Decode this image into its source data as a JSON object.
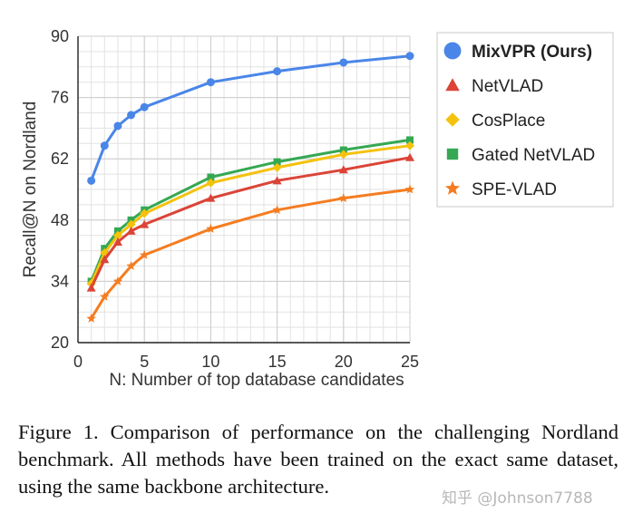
{
  "chart_data": {
    "type": "line",
    "title": "",
    "xlabel": "N: Number of top database candidates",
    "ylabel": "Recall@N on Nordland",
    "x": [
      1,
      2,
      3,
      4,
      5,
      10,
      15,
      20,
      25
    ],
    "xticks": [
      0,
      5,
      10,
      15,
      20,
      25
    ],
    "yticks": [
      20,
      34,
      48,
      62,
      76,
      90
    ],
    "xlim": [
      0,
      25
    ],
    "ylim": [
      20,
      90
    ],
    "grid": true,
    "legend_position": "right",
    "series": [
      {
        "name": "MixVPR (Ours)",
        "marker": "circle",
        "color": "#4a86e8",
        "bold": true,
        "values": [
          57.0,
          65.0,
          69.5,
          72.0,
          73.8,
          79.5,
          82.0,
          84.0,
          85.5
        ]
      },
      {
        "name": "NetVLAD",
        "marker": "triangle",
        "color": "#db4437",
        "values": [
          32.5,
          39.0,
          43.0,
          45.5,
          47.0,
          53.0,
          57.0,
          59.5,
          62.3
        ]
      },
      {
        "name": "CosPlace",
        "marker": "diamond",
        "color": "#f4c20d",
        "values": [
          33.5,
          40.5,
          44.5,
          47.0,
          49.5,
          56.5,
          60.0,
          63.0,
          65.0
        ]
      },
      {
        "name": "Gated NetVLAD",
        "marker": "square",
        "color": "#34a853",
        "values": [
          34.0,
          41.5,
          45.5,
          48.0,
          50.3,
          57.8,
          61.3,
          64.0,
          66.3
        ]
      },
      {
        "name": "SPE-VLAD",
        "marker": "star",
        "color": "#f57c20",
        "values": [
          25.5,
          30.5,
          34.0,
          37.5,
          40.0,
          46.0,
          50.3,
          53.0,
          55.0
        ]
      }
    ]
  },
  "caption": "Figure 1. Comparison of performance on the challenging Nordland benchmark. All methods have been trained on the exact same dataset, using the same backbone architecture.",
  "watermark": "知乎 @Johnson7788"
}
